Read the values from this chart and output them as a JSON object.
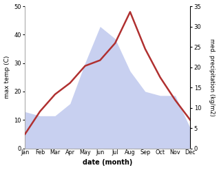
{
  "months": [
    "Jan",
    "Feb",
    "Mar",
    "Apr",
    "May",
    "Jun",
    "Jul",
    "Aug",
    "Sep",
    "Oct",
    "Nov",
    "Dec"
  ],
  "temperature": [
    5,
    13,
    19,
    23,
    29,
    31,
    37,
    48,
    35,
    25,
    17,
    10
  ],
  "precipitation": [
    9,
    8,
    8,
    11,
    21,
    30,
    27,
    19,
    14,
    13,
    13,
    5
  ],
  "temp_color": "#b03030",
  "precip_fill_color": "#c8d0f0",
  "temp_ylim": [
    0,
    50
  ],
  "precip_ylim": [
    0,
    35
  ],
  "temp_yticks": [
    0,
    10,
    20,
    30,
    40,
    50
  ],
  "precip_yticks": [
    0,
    5,
    10,
    15,
    20,
    25,
    30,
    35
  ],
  "ylabel_left": "max temp (C)",
  "ylabel_right": "med. precipitation (kg/m2)",
  "xlabel": "date (month)",
  "background_color": "#ffffff",
  "temp_linewidth": 1.8
}
